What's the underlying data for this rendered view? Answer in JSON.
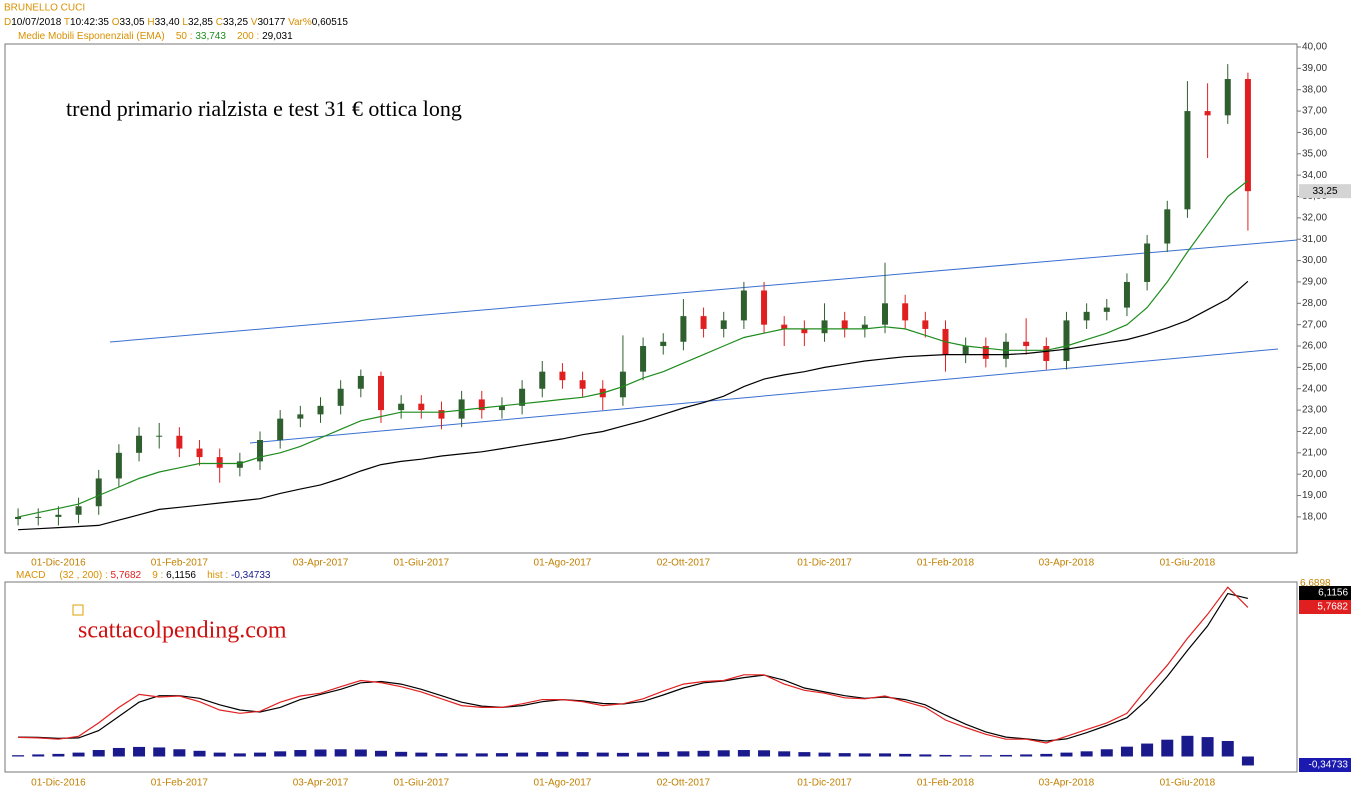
{
  "header": {
    "symbol": "BRUNELLO CUCI",
    "quote": [
      [
        "D",
        "10/07/2018"
      ],
      [
        "T",
        "10:42:35"
      ],
      [
        "O",
        "33,05"
      ],
      [
        "H",
        "33,40"
      ],
      [
        "L",
        "32,85"
      ],
      [
        "C",
        "33,25"
      ],
      [
        "V",
        "30177"
      ],
      [
        "Var%",
        "0,60515"
      ]
    ],
    "ema_title": "Medie Mobili Esponenziali (EMA)"
  },
  "chart_data": [
    {
      "type": "candlestick",
      "annotation": "trend primario rialzista e test 31 € ottica long",
      "categories": [
        null,
        null,
        "01-Dic-2016",
        null,
        null,
        null,
        null,
        null,
        "01-Feb-2017",
        null,
        null,
        null,
        null,
        null,
        null,
        "03-Apr-2017",
        null,
        null,
        null,
        null,
        "01-Giu-2017",
        null,
        null,
        null,
        null,
        null,
        null,
        "01-Ago-2017",
        null,
        null,
        null,
        null,
        null,
        "02-Ott-2017",
        null,
        null,
        null,
        null,
        null,
        null,
        "01-Dic-2017",
        null,
        null,
        null,
        null,
        null,
        "01-Feb-2018",
        null,
        null,
        null,
        null,
        null,
        "03-Apr-2018",
        null,
        null,
        null,
        null,
        null,
        "01-Giu-2018",
        null,
        null,
        null
      ],
      "open": [
        17.9,
        18.0,
        18.0,
        18.1,
        18.5,
        19.8,
        21.0,
        21.8,
        21.8,
        21.2,
        20.8,
        20.3,
        20.6,
        21.6,
        22.6,
        22.8,
        23.2,
        24.0,
        24.6,
        23.0,
        23.3,
        23.0,
        22.6,
        23.5,
        23.0,
        23.2,
        24.0,
        24.8,
        24.4,
        24.0,
        23.6,
        24.8,
        26.0,
        26.2,
        27.4,
        26.8,
        27.2,
        28.6,
        27.0,
        26.8,
        26.6,
        27.2,
        26.8,
        27.0,
        28.0,
        27.2,
        26.8,
        25.6,
        26.0,
        25.4,
        26.2,
        26.0,
        25.3,
        27.2,
        27.6,
        27.8,
        29.0,
        30.8,
        32.4,
        37.0,
        36.8,
        38.5
      ],
      "high": [
        18.4,
        18.4,
        18.5,
        18.9,
        20.2,
        21.4,
        22.2,
        22.4,
        22.2,
        21.6,
        21.2,
        21.0,
        22.0,
        23.0,
        23.2,
        23.6,
        24.4,
        24.9,
        24.8,
        23.7,
        23.7,
        23.4,
        23.9,
        23.9,
        23.6,
        24.4,
        25.3,
        25.2,
        24.8,
        24.4,
        26.5,
        26.4,
        26.6,
        28.2,
        27.8,
        27.6,
        29.0,
        29.0,
        27.4,
        27.2,
        28.0,
        27.6,
        27.4,
        29.9,
        28.4,
        27.6,
        27.2,
        26.4,
        26.4,
        26.6,
        27.3,
        26.4,
        27.6,
        28.0,
        28.2,
        29.4,
        31.2,
        32.8,
        38.4,
        38.3,
        39.2,
        38.8
      ],
      "low": [
        17.6,
        17.6,
        17.6,
        17.7,
        18.1,
        19.4,
        20.6,
        21.2,
        20.8,
        20.4,
        19.6,
        19.9,
        20.2,
        21.2,
        22.2,
        22.4,
        22.8,
        23.6,
        22.4,
        22.6,
        22.6,
        22.1,
        22.2,
        22.6,
        22.6,
        22.8,
        23.6,
        24.0,
        23.6,
        23.0,
        23.2,
        24.4,
        25.6,
        25.8,
        26.4,
        26.4,
        26.8,
        26.6,
        26.0,
        26.0,
        26.2,
        26.4,
        26.4,
        26.6,
        26.8,
        26.4,
        24.8,
        25.2,
        25.0,
        25.0,
        25.6,
        24.9,
        24.9,
        26.8,
        27.2,
        27.4,
        28.6,
        30.4,
        32.0,
        34.8,
        36.4,
        31.4
      ],
      "close": [
        18.0,
        18.0,
        18.1,
        18.5,
        19.8,
        21.0,
        21.8,
        21.8,
        21.2,
        20.8,
        20.3,
        20.6,
        21.6,
        22.6,
        22.8,
        23.2,
        24.0,
        24.6,
        23.0,
        23.3,
        23.0,
        22.6,
        23.5,
        23.0,
        23.2,
        24.0,
        24.8,
        24.4,
        24.0,
        23.6,
        24.8,
        26.0,
        26.2,
        27.4,
        26.8,
        27.2,
        28.6,
        27.0,
        26.8,
        26.6,
        27.2,
        26.8,
        27.0,
        28.0,
        27.2,
        26.8,
        25.6,
        26.0,
        25.4,
        26.2,
        26.0,
        25.3,
        27.2,
        27.6,
        27.8,
        29.0,
        30.8,
        32.4,
        37.0,
        36.8,
        38.5,
        33.25
      ],
      "close_label": "33,25",
      "up_color": "#2f5f2f",
      "down_color": "#e02020",
      "lines": [
        {
          "label": "50 :",
          "last_label": "33,743",
          "color": "#1e8c1e",
          "values": [
            18.0,
            18.2,
            18.4,
            18.6,
            19.0,
            19.4,
            19.8,
            20.1,
            20.3,
            20.5,
            20.5,
            20.5,
            20.8,
            21.0,
            21.3,
            21.7,
            22.1,
            22.5,
            22.7,
            22.9,
            22.9,
            22.9,
            23.0,
            23.1,
            23.2,
            23.3,
            23.4,
            23.5,
            23.6,
            23.8,
            24.1,
            24.5,
            24.8,
            25.2,
            25.6,
            26.0,
            26.4,
            26.6,
            26.8,
            26.8,
            26.8,
            26.8,
            26.8,
            26.9,
            26.8,
            26.5,
            26.2,
            26.0,
            25.9,
            25.8,
            25.8,
            25.8,
            26.0,
            26.3,
            26.6,
            27.0,
            27.8,
            29.0,
            30.4,
            31.7,
            33.0,
            33.743
          ]
        },
        {
          "label": "200 :",
          "last_label": "29,031",
          "color": "#000000",
          "values": [
            17.4,
            17.45,
            17.5,
            17.55,
            17.6,
            17.85,
            18.1,
            18.35,
            18.45,
            18.55,
            18.65,
            18.75,
            18.85,
            19.1,
            19.3,
            19.5,
            19.8,
            20.15,
            20.45,
            20.6,
            20.7,
            20.85,
            20.95,
            21.05,
            21.2,
            21.35,
            21.5,
            21.65,
            21.85,
            22.0,
            22.25,
            22.5,
            22.8,
            23.1,
            23.35,
            23.65,
            24.1,
            24.45,
            24.65,
            24.8,
            25.0,
            25.15,
            25.3,
            25.4,
            25.5,
            25.55,
            25.6,
            25.6,
            25.6,
            25.6,
            25.65,
            25.75,
            25.85,
            26.0,
            26.15,
            26.3,
            26.55,
            26.85,
            27.2,
            27.7,
            28.2,
            29.031
          ]
        }
      ],
      "ylim": [
        16.31,
        40.14
      ],
      "yticks": [
        {
          "value": 18,
          "label": "18,00"
        },
        {
          "value": 19,
          "label": "19,00"
        },
        {
          "value": 20,
          "label": "20,00"
        },
        {
          "value": 21,
          "label": "21,00"
        },
        {
          "value": 22,
          "label": "22,00"
        },
        {
          "value": 23,
          "label": "23,00"
        },
        {
          "value": 24,
          "label": "24,00"
        },
        {
          "value": 25,
          "label": "25,00"
        },
        {
          "value": 26,
          "label": "26,00"
        },
        {
          "value": 27,
          "label": "27,00"
        },
        {
          "value": 28,
          "label": "28,00"
        },
        {
          "value": 29,
          "label": "29,00"
        },
        {
          "value": 30,
          "label": "30,00"
        },
        {
          "value": 31,
          "label": "31,00"
        },
        {
          "value": 32,
          "label": "32,00"
        },
        {
          "value": 33,
          "label": "33,00"
        },
        {
          "value": 34,
          "label": "34,00"
        },
        {
          "value": 35,
          "label": "35,00"
        },
        {
          "value": 36,
          "label": "36,00"
        },
        {
          "value": 37,
          "label": "37,00"
        },
        {
          "value": 38,
          "label": "38,00"
        },
        {
          "value": 39,
          "label": "39,00"
        },
        {
          "value": 40,
          "label": "40,00"
        }
      ]
    },
    {
      "type": "macd",
      "title": "MACD",
      "annotation": "scattacolpending.com",
      "series": [
        {
          "label": "(32 , 200) :",
          "last_label": "5,7682",
          "color": "#e02020",
          "values": [
            0.74,
            0.72,
            0.67,
            0.78,
            1.3,
            1.9,
            2.4,
            2.3,
            2.34,
            2.12,
            1.8,
            1.67,
            1.75,
            2.1,
            2.34,
            2.45,
            2.7,
            2.94,
            2.86,
            2.7,
            2.5,
            2.23,
            1.97,
            1.9,
            1.9,
            2.04,
            2.2,
            2.2,
            2.12,
            1.97,
            2.04,
            2.23,
            2.53,
            2.8,
            2.9,
            2.94,
            3.16,
            3.16,
            2.8,
            2.56,
            2.45,
            2.27,
            2.23,
            2.34,
            2.12,
            1.9,
            1.41,
            1.12,
            0.86,
            0.67,
            0.67,
            0.52,
            0.78,
            1.04,
            1.3,
            1.67,
            2.64,
            3.53,
            4.57,
            5.5,
            6.55,
            5.7682
          ]
        },
        {
          "label": "9 :",
          "last_label": "6,1156",
          "color": "#000000",
          "values": [
            0.75,
            0.74,
            0.7,
            0.72,
            1.0,
            1.55,
            2.1,
            2.35,
            2.35,
            2.25,
            2.0,
            1.8,
            1.72,
            1.9,
            2.2,
            2.4,
            2.6,
            2.85,
            2.9,
            2.8,
            2.6,
            2.35,
            2.1,
            1.95,
            1.9,
            1.97,
            2.12,
            2.2,
            2.15,
            2.05,
            2.03,
            2.13,
            2.38,
            2.65,
            2.85,
            2.92,
            3.05,
            3.15,
            2.95,
            2.65,
            2.5,
            2.35,
            2.25,
            2.3,
            2.2,
            2.0,
            1.6,
            1.25,
            0.95,
            0.75,
            0.68,
            0.6,
            0.68,
            0.92,
            1.2,
            1.5,
            2.2,
            3.1,
            4.1,
            5.05,
            6.3,
            6.1156
          ]
        },
        {
          "label": "hist :",
          "last_label": "-0,34733",
          "color": "#1a1a8c",
          "values": [
            0.05,
            0.08,
            0.1,
            0.15,
            0.25,
            0.33,
            0.37,
            0.35,
            0.28,
            0.22,
            0.15,
            0.12,
            0.15,
            0.2,
            0.25,
            0.27,
            0.28,
            0.27,
            0.22,
            0.18,
            0.15,
            0.13,
            0.12,
            0.12,
            0.13,
            0.15,
            0.17,
            0.18,
            0.17,
            0.15,
            0.14,
            0.15,
            0.18,
            0.2,
            0.22,
            0.24,
            0.25,
            0.24,
            0.2,
            0.17,
            0.15,
            0.13,
            0.12,
            0.12,
            0.1,
            0.08,
            0.06,
            0.05,
            0.05,
            0.06,
            0.08,
            0.1,
            0.15,
            0.2,
            0.28,
            0.38,
            0.5,
            0.65,
            0.8,
            0.75,
            0.6,
            -0.34733
          ]
        }
      ],
      "ylim": [
        -0.6,
        6.75
      ],
      "yticks": [
        {
          "value": 6.6898,
          "label": "6,6898"
        }
      ]
    }
  ]
}
